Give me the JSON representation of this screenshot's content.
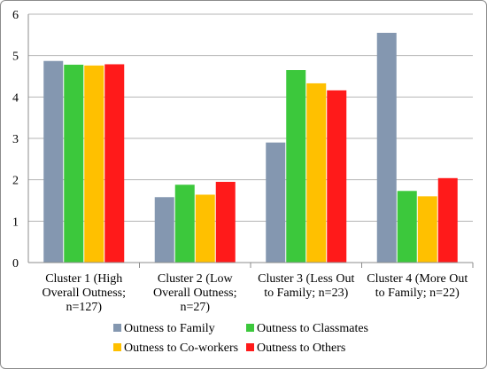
{
  "chart_data": {
    "type": "bar",
    "categories": [
      [
        "Cluster 1 (High",
        "Overall Outness;",
        "n=127)"
      ],
      [
        "Cluster 2 (Low",
        "Overall Outness;",
        "n=27)"
      ],
      [
        "Cluster 3 (Less Out",
        "to Family; n=23)"
      ],
      [
        "Cluster 4 (More Out",
        "to Family; n=22)"
      ]
    ],
    "series": [
      {
        "name": "Outness to Family",
        "color": "#8497b0",
        "values": [
          4.87,
          1.58,
          2.9,
          5.55
        ]
      },
      {
        "name": "Outness to Classmates",
        "color": "#3cc83c",
        "values": [
          4.78,
          1.88,
          4.65,
          1.73
        ]
      },
      {
        "name": "Outness to Co-workers",
        "color": "#ffc000",
        "values": [
          4.76,
          1.64,
          4.33,
          1.6
        ]
      },
      {
        "name": "Outness to Others",
        "color": "#ff1a1a",
        "values": [
          4.79,
          1.95,
          4.16,
          2.04
        ]
      }
    ],
    "ylim": [
      0,
      6
    ],
    "yticks": [
      0,
      1,
      2,
      3,
      4,
      5,
      6
    ],
    "grid": true,
    "legend_position": "bottom"
  }
}
